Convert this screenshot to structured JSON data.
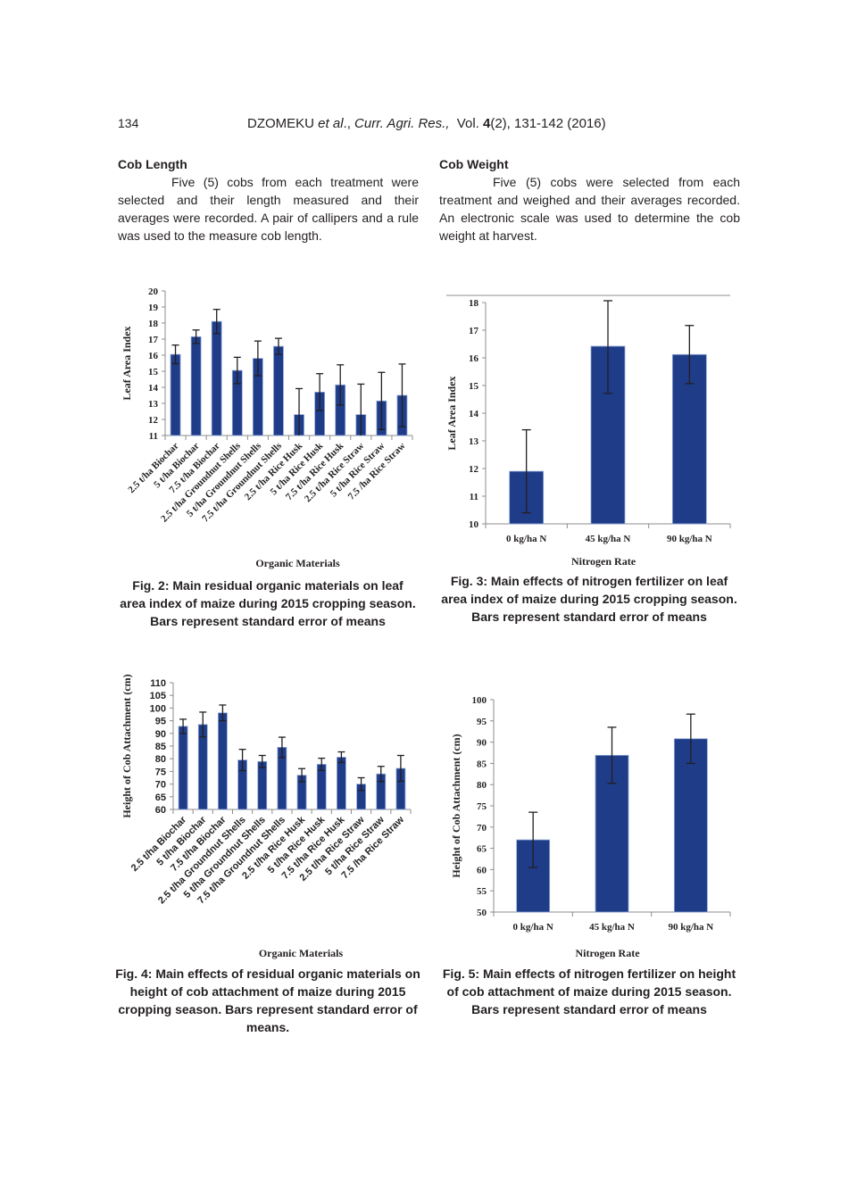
{
  "header": {
    "page_number": "134",
    "author": "DZOMEKU",
    "etal": "et al",
    "journal": "Curr. Agri. Res.,",
    "volume_label": "Vol.",
    "volume": "4",
    "issue_pages_year": "(2), 131-142 (2016)"
  },
  "sections": [
    {
      "heading": "Cob Length",
      "body": "Five (5) cobs from each treatment were selected and their length measured and their averages were recorded. A pair of callipers and a rule was used to the measure cob length."
    },
    {
      "heading": "Cob Weight",
      "body": "Five (5) cobs were selected from each treatment and weighed and their averages recorded. An electronic scale was used to determine the cob weight at harvest."
    }
  ],
  "colors": {
    "bar": "#1f3c88",
    "bar_edge": "#8fa8d8",
    "axis": "#8c8c8c",
    "error_bar": "#231f20",
    "text": "#231f20"
  },
  "captions": {
    "fig2": "Fig. 2: Main residual organic materials on leaf area index of maize during 2015 cropping season. Bars represent standard error of means",
    "fig3": "Fig. 3: Main effects of nitrogen fertilizer on leaf area index of maize during 2015 cropping season. Bars represent standard error of means",
    "fig4": "Fig. 4: Main effects of residual organic materials on height of cob attachment of maize during 2015 cropping season. Bars represent standard error of means.",
    "fig5": "Fig. 5: Main effects of nitrogen fertilizer on height of cob attachment of maize during 2015 season. Bars represent standard error of means"
  },
  "chart_data": [
    {
      "id": "fig2",
      "type": "bar",
      "title": "Fig. 2: Main residual organic materials on leaf area index of maize during 2015 cropping season",
      "xlabel": "Organic Materials",
      "ylabel": "Leaf Area Index",
      "ylim": [
        11,
        20
      ],
      "yticks": [
        11,
        12,
        13,
        14,
        15,
        16,
        17,
        18,
        19,
        20
      ],
      "grid": false,
      "legend": null,
      "categories": [
        "2.5 t/ha Biochar",
        "5 t/ha Biochar",
        "7.5 t/ha Biochar",
        "2.5 t/ha Groundnut Shells",
        "5 t/ha Groundnut Shells",
        "7.5 t/ha Groundnut Shells",
        "2.5 t/ha Rice Husk",
        "5 t/ha Rice Husk",
        "7.5 t/ha Rice Husk",
        "2.5 t/ha Rice Straw",
        "5 t/ha Rice Straw",
        "7.5 /ha Rice Straw"
      ],
      "values": [
        16.05,
        17.15,
        18.1,
        15.05,
        15.8,
        16.55,
        12.3,
        13.7,
        14.15,
        12.3,
        13.15,
        13.5
      ],
      "error": [
        0.58,
        0.42,
        0.75,
        0.82,
        1.08,
        0.5,
        1.62,
        1.15,
        1.25,
        1.9,
        1.78,
        1.95
      ]
    },
    {
      "id": "fig3",
      "type": "bar",
      "title": "Fig. 3: Main effects of nitrogen fertilizer on leaf area index of maize during 2015 cropping season",
      "xlabel": "Nitrogen Rate",
      "ylabel": "Leaf Area Index",
      "ylim": [
        10,
        18
      ],
      "yticks": [
        10,
        11,
        12,
        13,
        14,
        15,
        16,
        17,
        18
      ],
      "grid": false,
      "legend": null,
      "categories": [
        "0 kg/ha N",
        "45 kg/ha N",
        "90 kg/ha N"
      ],
      "values": [
        11.9,
        16.42,
        16.12
      ],
      "error": [
        1.5,
        1.7,
        1.05
      ]
    },
    {
      "id": "fig4",
      "type": "bar",
      "title": "Fig. 4: Main effects of residual organic materials on height of cob attachment of maize during 2015 cropping season",
      "xlabel": "Organic Materials",
      "ylabel": "Height of Cob Attachment (cm)",
      "ylim": [
        60,
        110
      ],
      "yticks": [
        60,
        65,
        70,
        75,
        80,
        85,
        90,
        95,
        100,
        105,
        110
      ],
      "grid": false,
      "legend": null,
      "categories": [
        "2.5 t/ha Biochar",
        "5 t/ha Biochar",
        "7.5 t/ha Biochar",
        "2.5 t/ha Groundnut Shells",
        "5 t/ha Groundnut Shells",
        "7.5 t/ha Groundnut Shells",
        "2.5 t/ha Rice Husk",
        "5 t/ha Rice Husk",
        "7.5 t/ha Rice Husk",
        "2.5 t/ha Rice Straw",
        "5 t/ha Rice Straw",
        "7.5 /ha Rice Straw"
      ],
      "values": [
        92.8,
        93.5,
        98.1,
        79.5,
        78.9,
        84.5,
        73.5,
        77.8,
        80.6,
        70.0,
        74.0,
        76.2
      ],
      "error": [
        2.8,
        4.9,
        3.1,
        4.2,
        2.4,
        4.0,
        2.6,
        2.4,
        2.1,
        2.5,
        3.0,
        5.1
      ]
    },
    {
      "id": "fig5",
      "type": "bar",
      "title": "Fig. 5: Main effects of nitrogen fertilizer on height of cob attachment of maize during 2015 season",
      "xlabel": "Nitrogen Rate",
      "ylabel": "Height of Cob Attachment (cm)",
      "ylim": [
        50,
        100
      ],
      "yticks": [
        50,
        55,
        60,
        65,
        70,
        75,
        80,
        85,
        90,
        95,
        100
      ],
      "grid": false,
      "legend": null,
      "categories": [
        "0 kg/ha N",
        "45 kg/ha N",
        "90 kg/ha N"
      ],
      "values": [
        67.0,
        86.9,
        90.8
      ],
      "error": [
        6.5,
        6.6,
        5.8
      ]
    }
  ]
}
